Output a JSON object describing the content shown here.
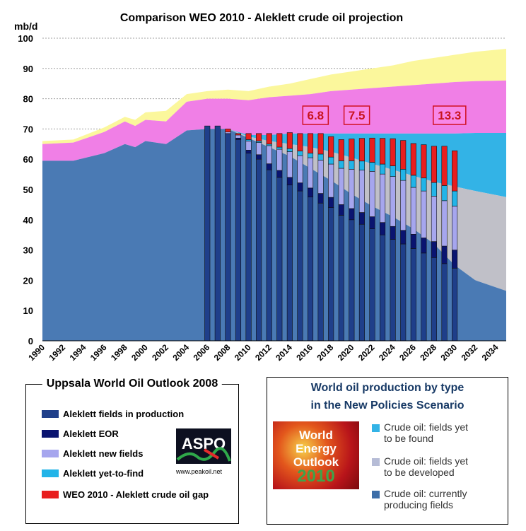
{
  "chart_data": {
    "type": "area",
    "title": "Comparison WEO 2010 - Aleklett crude oil projection",
    "ylabel": "mb/d",
    "ylim": [
      0,
      100
    ],
    "y_ticks": [
      0,
      10,
      20,
      30,
      40,
      50,
      60,
      70,
      80,
      90,
      100
    ],
    "xlim": [
      1990,
      2035
    ],
    "x_ticks": [
      "1990",
      "1992",
      "1994",
      "1996",
      "1998",
      "2000",
      "2002",
      "2004",
      "2006",
      "2008",
      "2010",
      "2012",
      "2014",
      "2016",
      "2018",
      "2020",
      "2022",
      "2024",
      "2026",
      "2028",
      "2030",
      "2032",
      "2034"
    ],
    "grid": true,
    "area_series_colors": [
      "#4a7ab4",
      "#c0c0c8",
      "#33b3e6",
      "#f07fe6",
      "#fbf79c"
    ],
    "area_x": [
      1990,
      1993,
      1996,
      1998,
      1999,
      2000,
      2002,
      2004,
      2006,
      2008,
      2010,
      2012,
      2014,
      2016,
      2018,
      2020,
      2022,
      2024,
      2026,
      2028,
      2030,
      2032,
      2035
    ],
    "area_currently_producing": [
      59.5,
      59.5,
      62,
      65,
      64,
      66,
      65,
      69.5,
      70,
      70,
      67,
      64,
      61,
      57,
      53,
      48.5,
      44.5,
      41,
      37,
      32,
      25,
      20,
      16.5
    ],
    "area_to_be_developed_top": [
      59.5,
      59.5,
      62,
      65,
      64,
      66,
      65,
      69.5,
      70,
      70,
      67.5,
      66,
      65,
      64,
      62.5,
      60.5,
      58.5,
      56.5,
      54.5,
      52.5,
      51,
      49.5,
      47.5
    ],
    "area_yet_to_be_found_top": [
      59.5,
      59.5,
      62,
      65,
      64,
      66,
      65,
      69.5,
      70,
      70,
      68,
      68,
      68.5,
      68.5,
      68.5,
      68.5,
      68.5,
      68.5,
      68.5,
      68.5,
      68.5,
      68.7,
      68.7
    ],
    "area_pink_top": [
      65,
      65.5,
      69,
      72.5,
      71,
      73,
      72.5,
      79,
      80,
      80,
      79.5,
      80.5,
      81,
      81.5,
      82.5,
      83,
      83.5,
      84,
      84.5,
      85,
      85.5,
      85.8,
      86
    ],
    "area_yellow_top": [
      66,
      66.5,
      70.5,
      74,
      73,
      75.5,
      76,
      81.5,
      82.5,
      83,
      82.5,
      84,
      85,
      86.5,
      88,
      89,
      90,
      91,
      92.5,
      93.5,
      94.5,
      95.5,
      96.5
    ],
    "bars": {
      "years": [
        2006,
        2007,
        2008,
        2009,
        2010,
        2011,
        2012,
        2013,
        2014,
        2015,
        2016,
        2017,
        2018,
        2019,
        2020,
        2021,
        2022,
        2023,
        2024,
        2025,
        2026,
        2027,
        2028,
        2029,
        2030
      ],
      "fields_in_production": [
        71,
        71,
        68.5,
        66.5,
        62,
        60,
        56.5,
        54,
        51.5,
        49.5,
        47.5,
        45.5,
        44,
        41.5,
        40,
        38.5,
        37,
        35,
        33.5,
        32,
        30.5,
        29,
        27.5,
        25.5,
        24
      ],
      "eor": [
        0,
        0,
        0,
        0.5,
        1,
        1.5,
        2,
        2.3,
        2.5,
        2.7,
        3,
        3.2,
        3.4,
        3.5,
        3.7,
        3.9,
        4,
        4.1,
        4.3,
        4.5,
        4.7,
        5,
        5.3,
        5.8,
        6
      ],
      "new_fields": [
        0,
        0,
        0.5,
        1,
        3,
        4,
        6,
        7,
        8.5,
        9,
        10,
        11,
        11,
        12,
        13,
        14,
        15,
        16,
        16.5,
        16.5,
        15.5,
        15.5,
        15,
        15,
        14.5
      ],
      "yet_to_find": [
        0,
        0,
        0,
        0,
        0.5,
        0.5,
        0.5,
        0.7,
        1,
        1.5,
        1.5,
        2,
        2.3,
        2.5,
        2.8,
        3,
        3,
        3.3,
        3.5,
        3.7,
        4,
        4.3,
        4.5,
        5,
        5
      ],
      "crude_gap": [
        0,
        0,
        1,
        0.5,
        2,
        2.5,
        3.5,
        4.5,
        5.3,
        5.8,
        6.5,
        6.8,
        6.8,
        7,
        7.2,
        7.5,
        8,
        8.5,
        9,
        9.5,
        10.5,
        11,
        12,
        13,
        13.3
      ]
    },
    "annotations": [
      {
        "text": "6.8",
        "x": 2016.5
      },
      {
        "text": "7.5",
        "x": 2020.5
      },
      {
        "text": "13.3",
        "x": 2029.5
      }
    ]
  },
  "legend_left": {
    "title": "Uppsala World Oil Outlook 2008",
    "items": [
      {
        "label": "Aleklett fields in production",
        "color": "#1f3f8a"
      },
      {
        "label": "Aleklett EOR",
        "color": "#0a1470"
      },
      {
        "label": "Aleklett new fields",
        "color": "#a6a6ee"
      },
      {
        "label": "Aleklett yet-to-find",
        "color": "#22b4e8"
      },
      {
        "label": "WEO 2010 - Aleklett crude oil gap",
        "color": "#e81e1e"
      }
    ],
    "logo_text": "ASPO",
    "logo_url": "www.peakoil.net"
  },
  "legend_right": {
    "title_line1": "World oil production by type",
    "title_line2": "in the New Policies Scenario",
    "logo_line1": "World",
    "logo_line2": "Energy",
    "logo_line3": "Outlook",
    "logo_year": "2010",
    "items": [
      {
        "label_line1": "Crude oil: fields yet",
        "label_line2": "to be found",
        "color": "#33b3e6"
      },
      {
        "label_line1": "Crude oil: fields yet",
        "label_line2": "to be developed",
        "color": "#b6bcd6"
      },
      {
        "label_line1": "Crude oil: currently",
        "label_line2": "producing fields",
        "color": "#3d6ea8"
      }
    ]
  }
}
